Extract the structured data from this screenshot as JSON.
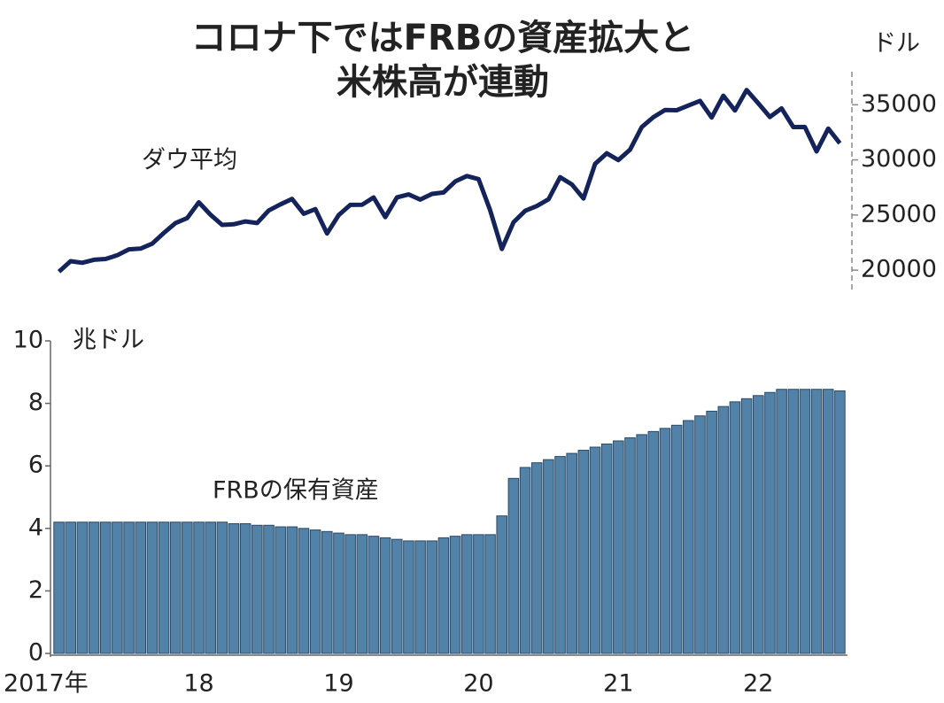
{
  "title": [
    "コロナ下ではFRBの資産拡大と",
    "米株高が連動"
  ],
  "chart_data": [
    {
      "type": "line",
      "label": "ダウ平均",
      "unit": "ドル",
      "color": "#14245a",
      "values": [
        19864,
        20812,
        20663,
        20941,
        21009,
        21350,
        21891,
        21948,
        22405,
        23377,
        24272,
        24719,
        26149,
        25029,
        24103,
        24163,
        24416,
        24271,
        25415,
        25965,
        26458,
        25116,
        25538,
        23327,
        24999,
        25916,
        25929,
        26593,
        24815,
        26600,
        26864,
        26403,
        26917,
        27046,
        28051,
        28538,
        28256,
        25409,
        21917,
        24346,
        25383,
        25813,
        26428,
        28430,
        27782,
        26502,
        29638,
        30606,
        29983,
        30932,
        32982,
        33875,
        34529,
        34503,
        34935,
        35361,
        33844,
        35820,
        34484,
        36338,
        35132,
        33893,
        34678,
        32977,
        32990,
        30775,
        32845,
        31510
      ],
      "ylim": [
        18000,
        38000
      ],
      "yticks": [
        20000,
        25000,
        30000,
        35000
      ]
    },
    {
      "type": "bar",
      "label": "FRBの保有資産",
      "unit": "兆ドル",
      "color": "#5282a8",
      "categories": [
        "2017年",
        null,
        null,
        null,
        null,
        null,
        null,
        null,
        null,
        null,
        null,
        null,
        "18",
        null,
        null,
        null,
        null,
        null,
        null,
        null,
        null,
        null,
        null,
        null,
        "19",
        null,
        null,
        null,
        null,
        null,
        null,
        null,
        null,
        null,
        null,
        null,
        "20",
        null,
        null,
        null,
        null,
        null,
        null,
        null,
        null,
        null,
        null,
        null,
        "21",
        null,
        null,
        null,
        null,
        null,
        null,
        null,
        null,
        null,
        null,
        null,
        "22",
        null,
        null,
        null,
        null,
        null,
        null,
        null
      ],
      "values": [
        4.2,
        4.2,
        4.2,
        4.2,
        4.2,
        4.2,
        4.2,
        4.2,
        4.2,
        4.2,
        4.2,
        4.2,
        4.2,
        4.2,
        4.2,
        4.15,
        4.15,
        4.1,
        4.1,
        4.05,
        4.05,
        4.0,
        3.95,
        3.9,
        3.85,
        3.8,
        3.8,
        3.75,
        3.7,
        3.65,
        3.6,
        3.6,
        3.6,
        3.7,
        3.75,
        3.8,
        3.8,
        3.8,
        4.4,
        5.6,
        5.95,
        6.1,
        6.2,
        6.3,
        6.4,
        6.5,
        6.6,
        6.7,
        6.8,
        6.9,
        7.0,
        7.1,
        7.2,
        7.3,
        7.45,
        7.6,
        7.75,
        7.9,
        8.05,
        8.15,
        8.25,
        8.35,
        8.45,
        8.45,
        8.45,
        8.45,
        8.45,
        8.4
      ],
      "ylim": [
        0,
        10
      ],
      "yticks": [
        0,
        2,
        4,
        6,
        8,
        10
      ]
    }
  ]
}
